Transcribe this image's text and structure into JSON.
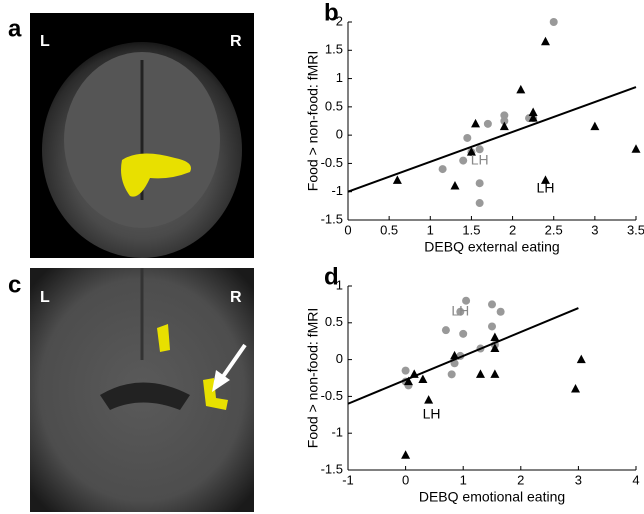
{
  "images": [
    {
      "panel": "a",
      "left": "L",
      "right": "R"
    },
    {
      "panel": "c",
      "left": "L",
      "right": "R"
    }
  ],
  "chart_data": [
    {
      "type": "scatter",
      "panel": "b",
      "xlabel": "DEBQ external eating",
      "ylabel": "Food > non-food: fMRI",
      "xlim": [
        0,
        3.5
      ],
      "xticks": [
        0,
        0.5,
        1,
        1.5,
        2,
        2.5,
        3,
        3.5
      ],
      "ylim": [
        -1.5,
        2
      ],
      "yticks": [
        -1.5,
        -1,
        -0.5,
        0,
        0.5,
        1,
        1.5,
        2
      ],
      "series": [
        {
          "color": "#999999",
          "marker": "circle",
          "x": [
            2.5,
            1.7,
            1.9,
            2.2,
            2.25,
            1.45,
            1.6,
            1.15,
            1.4,
            1.6,
            1.6,
            1.9,
            1.5
          ],
          "values": [
            2.0,
            0.2,
            0.35,
            0.3,
            0.3,
            -0.05,
            -0.25,
            -0.6,
            -0.45,
            -0.85,
            -1.2,
            0.25,
            -0.3
          ]
        },
        {
          "color": "#000000",
          "marker": "triangle",
          "x": [
            2.4,
            2.1,
            2.25,
            1.55,
            1.9,
            3.0,
            3.5,
            1.5,
            1.3,
            0.6,
            2.4,
            2.25
          ],
          "values": [
            1.65,
            0.8,
            0.4,
            0.2,
            0.15,
            0.15,
            -0.25,
            -0.3,
            -0.9,
            -0.8,
            -0.8,
            0.3
          ]
        }
      ],
      "fit": {
        "x": [
          0,
          3.5
        ],
        "y": [
          -1.0,
          0.85
        ]
      },
      "annotations": [
        {
          "text": "LH",
          "x": 1.6,
          "y": -0.45,
          "color": "#888888"
        },
        {
          "text": "LH",
          "x": 2.4,
          "y": -0.95,
          "color": "#000000"
        }
      ]
    },
    {
      "type": "scatter",
      "panel": "d",
      "xlabel": "DEBQ emotional eating",
      "ylabel": "Food > non-food: fMRI",
      "xlim": [
        -1,
        4
      ],
      "xticks": [
        -1,
        0,
        1,
        2,
        3,
        4
      ],
      "ylim": [
        -1.5,
        1
      ],
      "yticks": [
        -1.5,
        -1,
        -0.5,
        0,
        0.5,
        1
      ],
      "series": [
        {
          "color": "#999999",
          "marker": "circle",
          "x": [
            1.05,
            0.95,
            1.5,
            1.65,
            0.7,
            1.0,
            1.5,
            0.85,
            0.95,
            1.3,
            0,
            0.05,
            0,
            1.55,
            0.8
          ],
          "values": [
            0.8,
            0.65,
            0.75,
            0.65,
            0.4,
            0.35,
            0.45,
            -0.05,
            0.05,
            0.15,
            -0.15,
            -0.35,
            -0.3,
            0.2,
            -0.2
          ]
        },
        {
          "color": "#000000",
          "marker": "triangle",
          "x": [
            0.15,
            0.3,
            0.4,
            0.85,
            1.3,
            1.55,
            1.55,
            1.55,
            3.05,
            2.95,
            0,
            0.05
          ],
          "values": [
            -0.2,
            -0.27,
            -0.55,
            0.05,
            -0.2,
            -0.2,
            0.3,
            0.15,
            0,
            -0.4,
            -1.3,
            -0.3
          ]
        }
      ],
      "fit": {
        "x": [
          -1,
          3
        ],
        "y": [
          -0.6,
          0.7
        ]
      },
      "annotations": [
        {
          "text": "LH",
          "x": 0.95,
          "y": 0.65,
          "color": "#888888"
        },
        {
          "text": "LH",
          "x": 0.45,
          "y": -0.75,
          "color": "#000000"
        }
      ]
    }
  ]
}
